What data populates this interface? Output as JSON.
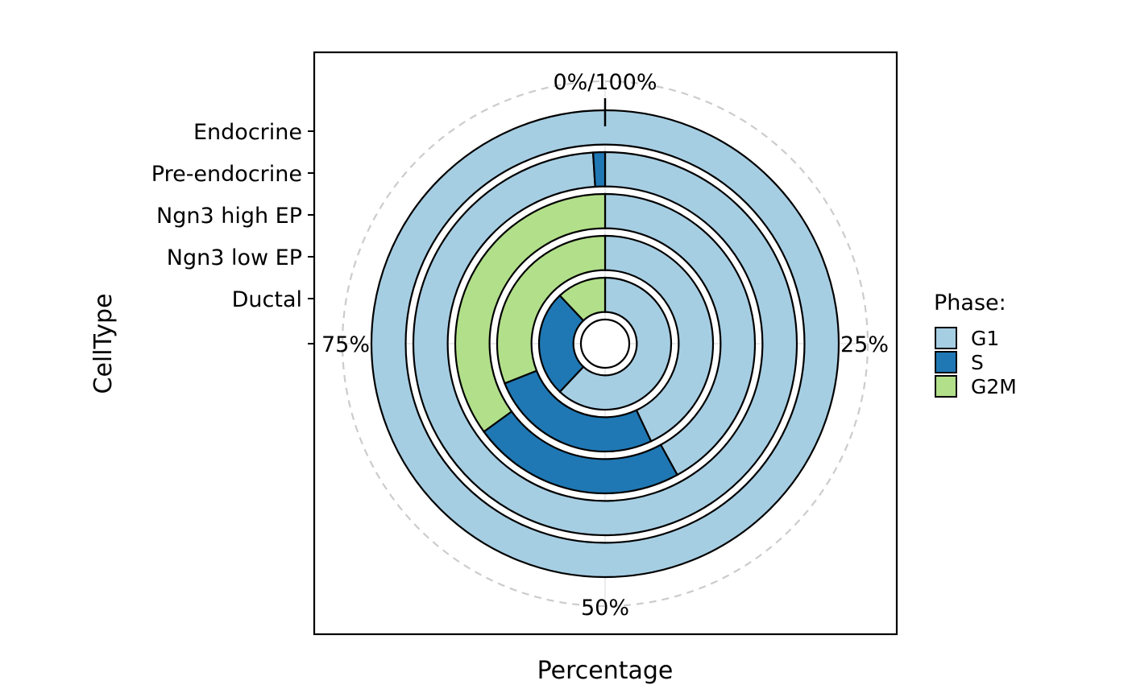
{
  "chart_data": {
    "type": "radial-stacked-bar",
    "title": "",
    "xlabel": "Percentage",
    "ylabel": "CellType",
    "angle_ticks": [
      {
        "value": 0,
        "label": "0%/100%"
      },
      {
        "value": 25,
        "label": "25%"
      },
      {
        "value": 50,
        "label": "50%"
      },
      {
        "value": 75,
        "label": "75%"
      }
    ],
    "categories": [
      "Ductal",
      "Ngn3 low EP",
      "Ngn3 high EP",
      "Pre-endocrine",
      "Endocrine"
    ],
    "series": [
      {
        "name": "G1",
        "color": "#A6CEE3",
        "values": [
          62,
          43,
          42,
          99,
          100
        ]
      },
      {
        "name": "S",
        "color": "#1F78B4",
        "values": [
          26,
          26,
          23,
          1,
          0
        ]
      },
      {
        "name": "G2M",
        "color": "#B2DF8A",
        "values": [
          12,
          31,
          35,
          0,
          0
        ]
      }
    ],
    "legend": {
      "title": "Phase:",
      "position": "right"
    },
    "grid": true
  }
}
